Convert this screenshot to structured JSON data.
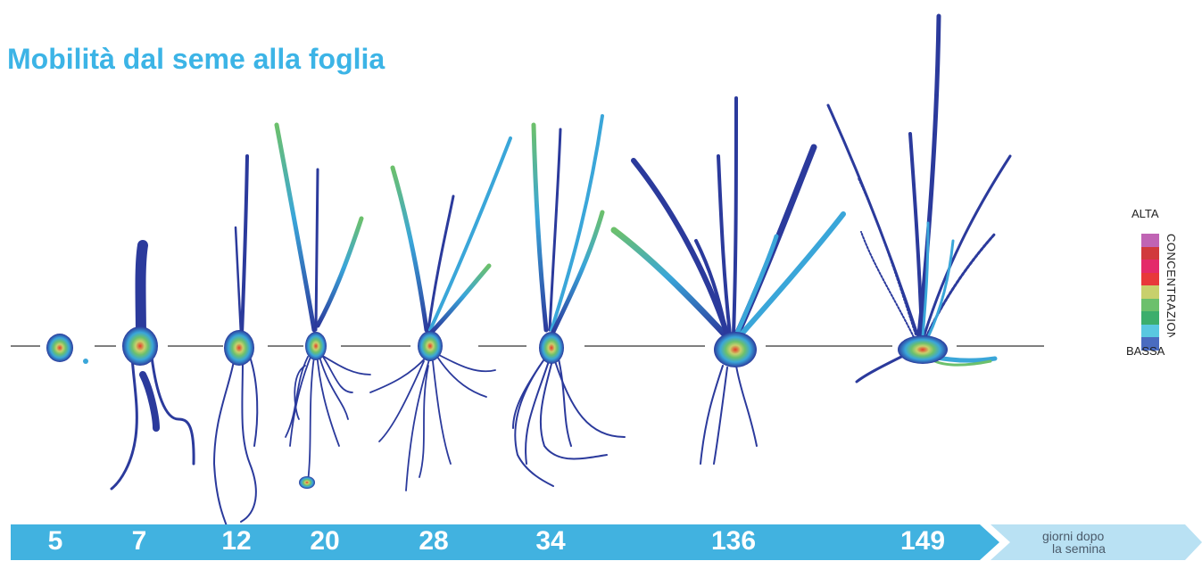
{
  "title": "Mobilità dal seme alla foglia",
  "legend": {
    "high": "ALTA",
    "low": "BASSA",
    "axis_label": "CONCENTRAZIONE",
    "colors_top_to_bottom": [
      "#c064b4",
      "#d13a3c",
      "#e42a6a",
      "#e8383a",
      "#c8d06c",
      "#6cc06c",
      "#3cae6c",
      "#5ac8e0",
      "#4a6cc0"
    ]
  },
  "timeline": {
    "days": [
      "5",
      "7",
      "12",
      "20",
      "28",
      "34",
      "136",
      "149"
    ],
    "caption_line1": "giorni dopo",
    "caption_line2": "la semina",
    "bar_color": "#41b2e0",
    "caption_color": "#b9e1f3"
  },
  "plant_colors": {
    "low": "#2b3a9c",
    "mid": "#3aa6d9",
    "green": "#6cc06c",
    "yellow": "#c8d06c",
    "hot": "#e53b2a"
  }
}
